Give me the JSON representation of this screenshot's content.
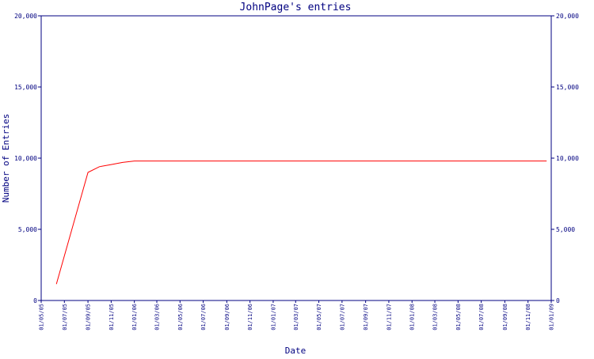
{
  "chart_data": {
    "type": "line",
    "title": "JohnPage's entries",
    "xlabel": "Date",
    "ylabel": "Number of Entries",
    "ylim": [
      0,
      20000
    ],
    "yticks": [
      0,
      5000,
      10000,
      15000,
      20000
    ],
    "ytick_labels": [
      "0",
      "5,000",
      "10,000",
      "15,000",
      "20,000"
    ],
    "xlim": [
      "2005-05-01",
      "2009-01-01"
    ],
    "xticks": [
      "2005-05-01",
      "2005-07-01",
      "2005-09-01",
      "2005-11-01",
      "2006-01-01",
      "2006-03-01",
      "2006-05-01",
      "2006-07-01",
      "2006-09-01",
      "2006-11-01",
      "2007-01-01",
      "2007-03-01",
      "2007-05-01",
      "2007-07-01",
      "2007-09-01",
      "2007-11-01",
      "2008-01-01",
      "2008-03-01",
      "2008-05-01",
      "2008-07-01",
      "2008-09-01",
      "2008-11-01",
      "2009-01-01"
    ],
    "xtick_labels": [
      "01/05/05",
      "01/07/05",
      "01/09/05",
      "01/11/05",
      "01/01/06",
      "01/03/06",
      "01/05/06",
      "01/07/06",
      "01/09/06",
      "01/11/06",
      "01/01/07",
      "01/03/07",
      "01/05/07",
      "01/07/07",
      "01/09/07",
      "01/11/07",
      "01/01/08",
      "01/03/08",
      "01/05/08",
      "01/07/08",
      "01/09/08",
      "01/11/08",
      "01/01/09"
    ],
    "grid": false,
    "series": [
      {
        "color": "#ff0000",
        "x": [
          "2005-06-10",
          "2005-09-01",
          "2005-10-01",
          "2005-11-01",
          "2005-12-01",
          "2006-01-01",
          "2008-12-20"
        ],
        "y": [
          1150,
          9000,
          9400,
          9550,
          9700,
          9800,
          9800
        ]
      }
    ]
  },
  "colors": {
    "frame": "#000080",
    "text": "#000080",
    "line": "#ff0000"
  }
}
